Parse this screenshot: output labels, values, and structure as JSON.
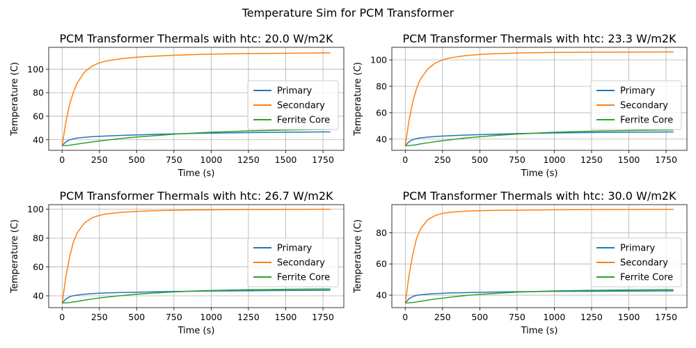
{
  "figure": {
    "suptitle": "Temperature Sim for PCM Transformer"
  },
  "chart_data": [
    {
      "type": "line",
      "title": "PCM Transformer Thermals with htc: 20.0 W/m2K",
      "xlabel": "Time (s)",
      "ylabel": "Temperature (C)",
      "xlim": [
        -90,
        1890
      ],
      "ylim": [
        31,
        118.5
      ],
      "xticks": [
        0,
        250,
        500,
        750,
        1000,
        1250,
        1500,
        1750
      ],
      "yticks": [
        40,
        60,
        80,
        100
      ],
      "grid": true,
      "legend_position": "center-right",
      "x": [
        0,
        25,
        50,
        75,
        100,
        150,
        200,
        250,
        300,
        400,
        500,
        600,
        750,
        900,
        1000,
        1250,
        1500,
        1750,
        1800
      ],
      "series": [
        {
          "name": "Primary",
          "color": "#1f77b4",
          "values": [
            35,
            38.2,
            39.9,
            40.8,
            41.4,
            42.1,
            42.6,
            42.9,
            43.2,
            43.7,
            44.1,
            44.5,
            45.0,
            45.4,
            45.6,
            46.1,
            46.4,
            46.7,
            46.7
          ]
        },
        {
          "name": "Secondary",
          "color": "#ff7f0e",
          "values": [
            35,
            55,
            70,
            80,
            88,
            97.5,
            102.5,
            105.3,
            107,
            108.9,
            110.1,
            110.9,
            111.8,
            112.4,
            112.7,
            113.2,
            113.5,
            113.8,
            113.8
          ]
        },
        {
          "name": "Ferrite Core",
          "color": "#2ca02c",
          "values": [
            35,
            35.1,
            35.4,
            35.8,
            36.3,
            37.2,
            38.1,
            38.9,
            39.7,
            41.1,
            42.3,
            43.3,
            44.7,
            45.8,
            46.4,
            47.5,
            48.2,
            48.8,
            48.9
          ]
        }
      ]
    },
    {
      "type": "line",
      "title": "PCM Transformer Thermals with htc: 23.3 W/m2K",
      "xlabel": "Time (s)",
      "ylabel": "Temperature (C)",
      "xlim": [
        -90,
        1890
      ],
      "ylim": [
        31.5,
        109.5
      ],
      "xticks": [
        0,
        250,
        500,
        750,
        1000,
        1250,
        1500,
        1750
      ],
      "yticks": [
        40,
        60,
        80,
        100
      ],
      "grid": true,
      "legend_position": "center-right",
      "x": [
        0,
        25,
        50,
        75,
        100,
        150,
        200,
        250,
        300,
        400,
        500,
        600,
        750,
        900,
        1000,
        1250,
        1500,
        1750,
        1800
      ],
      "series": [
        {
          "name": "Primary",
          "color": "#1f77b4",
          "values": [
            35,
            38,
            39.6,
            40.4,
            40.9,
            41.5,
            42.0,
            42.3,
            42.6,
            43.0,
            43.4,
            43.7,
            44.2,
            44.5,
            44.7,
            45.0,
            45.2,
            45.4,
            45.4
          ]
        },
        {
          "name": "Secondary",
          "color": "#ff7f0e",
          "values": [
            35,
            54,
            68,
            78,
            85,
            93,
            97.5,
            100,
            101.5,
            103.2,
            104.1,
            104.7,
            105.2,
            105.5,
            105.6,
            105.8,
            105.9,
            106,
            106
          ]
        },
        {
          "name": "Ferrite Core",
          "color": "#2ca02c",
          "values": [
            35,
            35.1,
            35.4,
            35.8,
            36.3,
            37.2,
            38.0,
            38.8,
            39.5,
            40.8,
            41.8,
            42.7,
            43.8,
            44.7,
            45.2,
            46.0,
            46.5,
            46.9,
            47
          ]
        }
      ]
    },
    {
      "type": "line",
      "title": "PCM Transformer Thermals with htc: 26.7 W/m2K",
      "xlabel": "Time (s)",
      "ylabel": "Temperature (C)",
      "xlim": [
        -90,
        1890
      ],
      "ylim": [
        31.8,
        103.2
      ],
      "xticks": [
        0,
        250,
        500,
        750,
        1000,
        1250,
        1500,
        1750
      ],
      "yticks": [
        40,
        60,
        80,
        100
      ],
      "grid": true,
      "legend_position": "center-right",
      "x": [
        0,
        25,
        50,
        75,
        100,
        150,
        200,
        250,
        300,
        400,
        500,
        600,
        750,
        900,
        1000,
        1250,
        1500,
        1750,
        1800
      ],
      "series": [
        {
          "name": "Primary",
          "color": "#1f77b4",
          "values": [
            35,
            37.8,
            39.3,
            40.1,
            40.5,
            41.1,
            41.5,
            41.8,
            42.0,
            42.3,
            42.5,
            42.7,
            43.0,
            43.2,
            43.3,
            43.5,
            43.7,
            43.8,
            43.8
          ]
        },
        {
          "name": "Secondary",
          "color": "#ff7f0e",
          "values": [
            35,
            53,
            67,
            77,
            83.5,
            90.5,
            94,
            95.8,
            96.8,
            97.9,
            98.5,
            98.9,
            99.3,
            99.5,
            99.6,
            99.8,
            99.9,
            100,
            100
          ]
        },
        {
          "name": "Ferrite Core",
          "color": "#2ca02c",
          "values": [
            35,
            35.1,
            35.3,
            35.7,
            36.1,
            37.0,
            37.8,
            38.5,
            39.1,
            40.2,
            41.1,
            41.8,
            42.7,
            43.4,
            43.7,
            44.2,
            44.5,
            44.7,
            44.7
          ]
        }
      ]
    },
    {
      "type": "line",
      "title": "PCM Transformer Thermals with htc: 30.0 W/m2K",
      "xlabel": "Time (s)",
      "ylabel": "Temperature (C)",
      "xlim": [
        -90,
        1890
      ],
      "ylim": [
        32,
        98
      ],
      "xticks": [
        0,
        250,
        500,
        750,
        1000,
        1250,
        1500,
        1750
      ],
      "yticks": [
        40,
        60,
        80
      ],
      "grid": true,
      "legend_position": "center-right",
      "x": [
        0,
        25,
        50,
        75,
        100,
        150,
        200,
        250,
        300,
        400,
        500,
        600,
        750,
        900,
        1000,
        1250,
        1500,
        1750,
        1800
      ],
      "series": [
        {
          "name": "Primary",
          "color": "#1f77b4",
          "values": [
            35,
            37.7,
            39.1,
            39.8,
            40.2,
            40.7,
            41.0,
            41.2,
            41.4,
            41.6,
            41.8,
            42.0,
            42.2,
            42.3,
            42.4,
            42.5,
            42.6,
            42.7,
            42.7
          ]
        },
        {
          "name": "Secondary",
          "color": "#ff7f0e",
          "values": [
            35,
            52.5,
            66,
            76,
            82,
            88.3,
            91,
            92.4,
            93.1,
            93.8,
            94.1,
            94.3,
            94.5,
            94.6,
            94.7,
            94.8,
            94.9,
            95,
            95
          ]
        },
        {
          "name": "Ferrite Core",
          "color": "#2ca02c",
          "values": [
            35,
            35.1,
            35.3,
            35.6,
            36.0,
            36.8,
            37.5,
            38.1,
            38.7,
            39.7,
            40.5,
            41.1,
            41.9,
            42.4,
            42.7,
            43.1,
            43.3,
            43.5,
            43.5
          ]
        }
      ]
    }
  ]
}
